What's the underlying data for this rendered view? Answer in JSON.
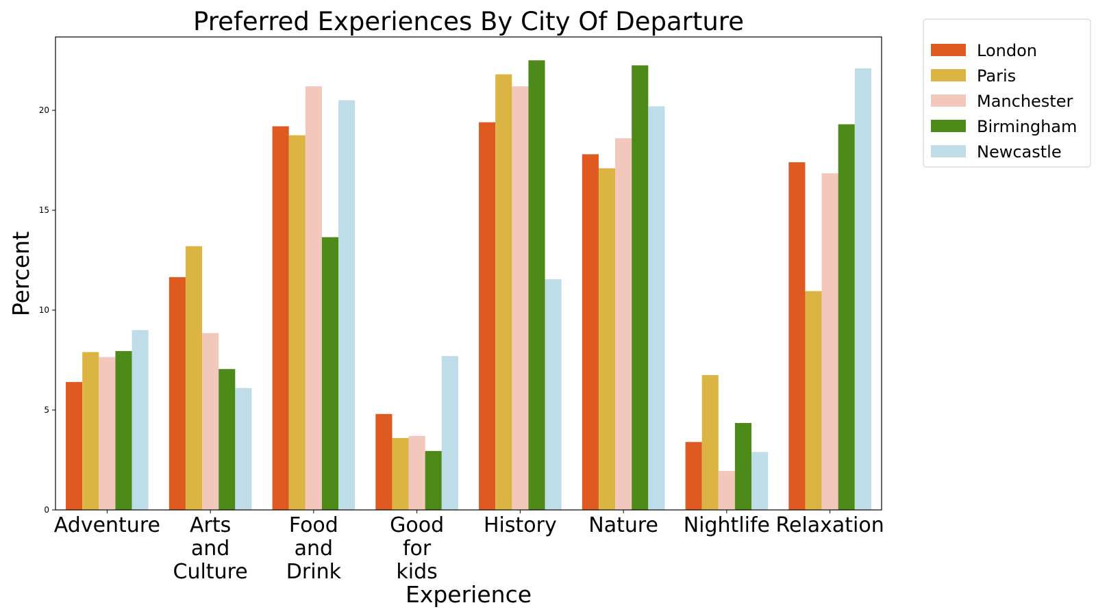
{
  "chart_data": {
    "type": "bar",
    "title": "Preferred Experiences By City Of Departure",
    "xlabel": "Experience",
    "ylabel": "Percent",
    "ylim": [
      0,
      23.67
    ],
    "yticks": [
      0,
      5,
      10,
      15,
      20
    ],
    "grid": false,
    "legend_position": "outside-top-right",
    "categories": [
      [
        "Adventure"
      ],
      [
        "Arts",
        "and",
        "Culture"
      ],
      [
        "Food",
        "and",
        "Drink"
      ],
      [
        "Good",
        "for",
        "kids"
      ],
      [
        "History"
      ],
      [
        "Nature"
      ],
      [
        "Nightlife"
      ],
      [
        "Relaxation"
      ]
    ],
    "series": [
      {
        "name": "London",
        "color": "#DE5A20",
        "values": [
          6.4,
          11.65,
          19.2,
          4.8,
          19.4,
          17.8,
          3.4,
          17.4
        ]
      },
      {
        "name": "Paris",
        "color": "#DCB443",
        "values": [
          7.9,
          13.2,
          18.75,
          3.6,
          21.8,
          17.1,
          6.75,
          10.95
        ]
      },
      {
        "name": "Manchester",
        "color": "#F2C7BC",
        "values": [
          7.65,
          8.85,
          21.2,
          3.7,
          21.2,
          18.6,
          1.95,
          16.85
        ]
      },
      {
        "name": "Birmingham",
        "color": "#4E8A19",
        "values": [
          7.95,
          7.05,
          13.65,
          2.95,
          22.5,
          22.25,
          4.35,
          19.3
        ]
      },
      {
        "name": "Newcastle",
        "color": "#BEDDE8",
        "values": [
          9.0,
          6.1,
          20.5,
          7.7,
          11.55,
          20.2,
          2.9,
          22.1
        ]
      }
    ]
  }
}
